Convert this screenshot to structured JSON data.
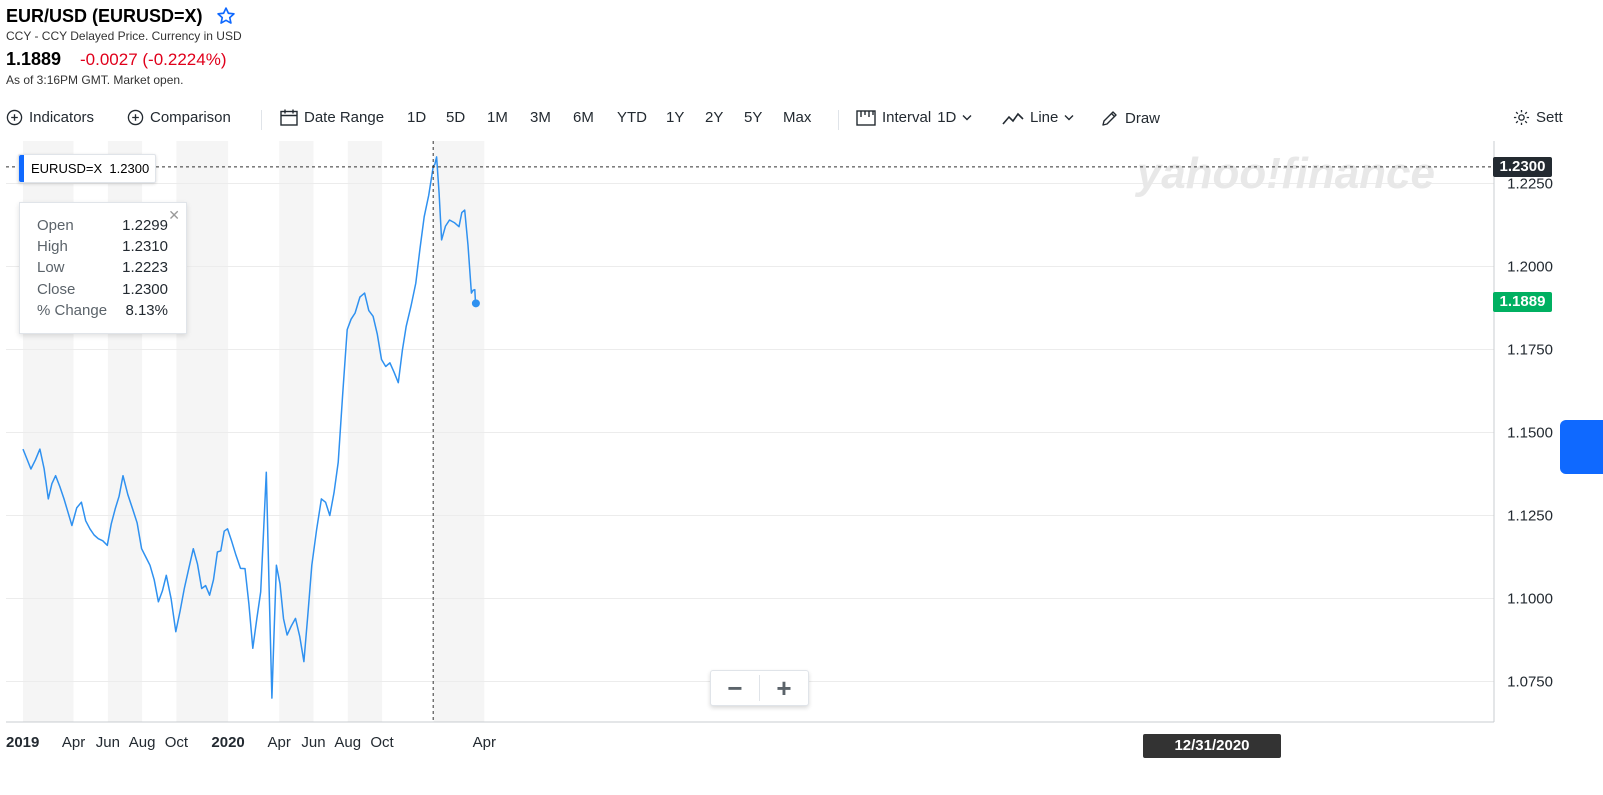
{
  "header": {
    "title": "EUR/USD (EURUSD=X)",
    "subtitle": "CCY - CCY Delayed Price. Currency in USD",
    "price": "1.1889",
    "change": "-0.0027 (-0.2224%)",
    "as_of": "As of 3:16PM GMT. Market open."
  },
  "toolbar": {
    "indicators": "Indicators",
    "comparison": "Comparison",
    "date_range": "Date Range",
    "ranges": [
      "1D",
      "5D",
      "1M",
      "3M",
      "6M",
      "YTD",
      "1Y",
      "2Y",
      "5Y",
      "Max"
    ],
    "interval_label": "Interval",
    "interval_value": "1D",
    "chart_type": "Line",
    "draw": "Draw",
    "settings": "Sett"
  },
  "series_tag": {
    "symbol": "EURUSD=X",
    "value": "1.2300"
  },
  "ohlc": {
    "rows": [
      {
        "label": "Open",
        "value": "1.2299"
      },
      {
        "label": "High",
        "value": "1.2310"
      },
      {
        "label": "Low",
        "value": "1.2223"
      },
      {
        "label": "Close",
        "value": "1.2300"
      },
      {
        "label": "% Change",
        "value": "8.13%"
      }
    ]
  },
  "watermark": "yahoo!finance",
  "crosshair_date": "12/31/2020",
  "crosshair_price": "1.2300",
  "last_price_tag": "1.1889",
  "colors": {
    "line": "#2f91f0",
    "negative": "#e0001b",
    "last_price": "#00b061",
    "band": "#f5f5f5",
    "accent": "#0f69ff"
  },
  "chart_data": {
    "type": "line",
    "series": [
      {
        "name": "EURUSD=X"
      }
    ],
    "y_ticks": [
      "1.2250",
      "1.2000",
      "1.1750",
      "1.1500",
      "1.1250",
      "1.1000",
      "1.0750"
    ],
    "x_ticks": [
      "2019",
      "Apr",
      "Jun",
      "Aug",
      "Oct",
      "2020",
      "Apr",
      "Jun",
      "Aug",
      "Oct",
      "Apr"
    ],
    "ylim": [
      1.0628,
      1.2378
    ],
    "x": [
      "2019-01-01",
      "2019-01-15",
      "2019-01-31",
      "2019-02-15",
      "2019-02-28",
      "2019-03-15",
      "2019-03-29",
      "2019-04-15",
      "2019-04-30",
      "2019-05-15",
      "2019-05-31",
      "2019-06-14",
      "2019-06-28",
      "2019-07-15",
      "2019-07-31",
      "2019-08-15",
      "2019-08-30",
      "2019-09-13",
      "2019-09-30",
      "2019-10-15",
      "2019-10-31",
      "2019-11-15",
      "2019-11-29",
      "2019-12-13",
      "2019-12-31",
      "2020-01-15",
      "2020-01-31",
      "2020-02-14",
      "2020-02-28",
      "2020-03-09",
      "2020-03-19",
      "2020-03-27",
      "2020-04-15",
      "2020-04-30",
      "2020-05-15",
      "2020-05-29",
      "2020-06-15",
      "2020-06-30",
      "2020-07-15",
      "2020-07-31",
      "2020-08-14",
      "2020-08-31",
      "2020-09-15",
      "2020-09-30",
      "2020-10-15",
      "2020-10-30",
      "2020-11-13",
      "2020-11-30",
      "2020-12-15",
      "2020-12-31",
      "2021-01-06",
      "2021-01-15",
      "2021-01-29",
      "2021-02-15",
      "2021-02-25",
      "2021-03-09",
      "2021-03-15",
      "2021-03-17"
    ],
    "values": [
      1.145,
      1.139,
      1.145,
      1.13,
      1.137,
      1.13,
      1.122,
      1.129,
      1.121,
      1.118,
      1.116,
      1.127,
      1.137,
      1.127,
      1.115,
      1.11,
      1.099,
      1.107,
      1.09,
      1.103,
      1.115,
      1.103,
      1.101,
      1.114,
      1.121,
      1.113,
      1.109,
      1.085,
      1.102,
      1.138,
      1.07,
      1.11,
      1.089,
      1.094,
      1.081,
      1.11,
      1.13,
      1.125,
      1.141,
      1.181,
      1.186,
      1.192,
      1.185,
      1.172,
      1.171,
      1.165,
      1.182,
      1.195,
      1.215,
      1.23,
      1.233,
      1.208,
      1.214,
      1.212,
      1.217,
      1.192,
      1.193,
      1.1889
    ],
    "title": "",
    "xlabel": "",
    "ylabel": "",
    "grid": true,
    "legend": "none"
  }
}
